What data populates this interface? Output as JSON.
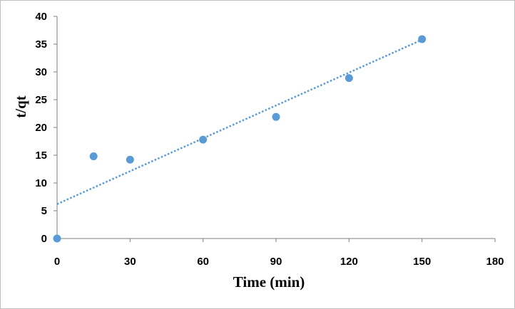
{
  "chart_data": {
    "type": "scatter",
    "title": "",
    "xlabel": "Time (min)",
    "ylabel": "t/qt",
    "xlim": [
      0,
      180
    ],
    "ylim": [
      0,
      40
    ],
    "xticks": [
      0,
      30,
      60,
      90,
      120,
      150,
      180
    ],
    "yticks": [
      0,
      5,
      10,
      15,
      20,
      25,
      30,
      35,
      40
    ],
    "grid": false,
    "legend": "none",
    "series": [
      {
        "name": "t/qt",
        "x": [
          0,
          15,
          30,
          60,
          90,
          120,
          150
        ],
        "y": [
          0,
          14.8,
          14.2,
          17.8,
          21.9,
          28.9,
          35.9
        ],
        "color": "#5b9bd5"
      }
    ],
    "trendline": {
      "type": "linear",
      "style": "dotted",
      "x_range": [
        0,
        150
      ],
      "y_start": 6.2,
      "y_end": 35.8,
      "color": "#5b9bd5"
    }
  }
}
